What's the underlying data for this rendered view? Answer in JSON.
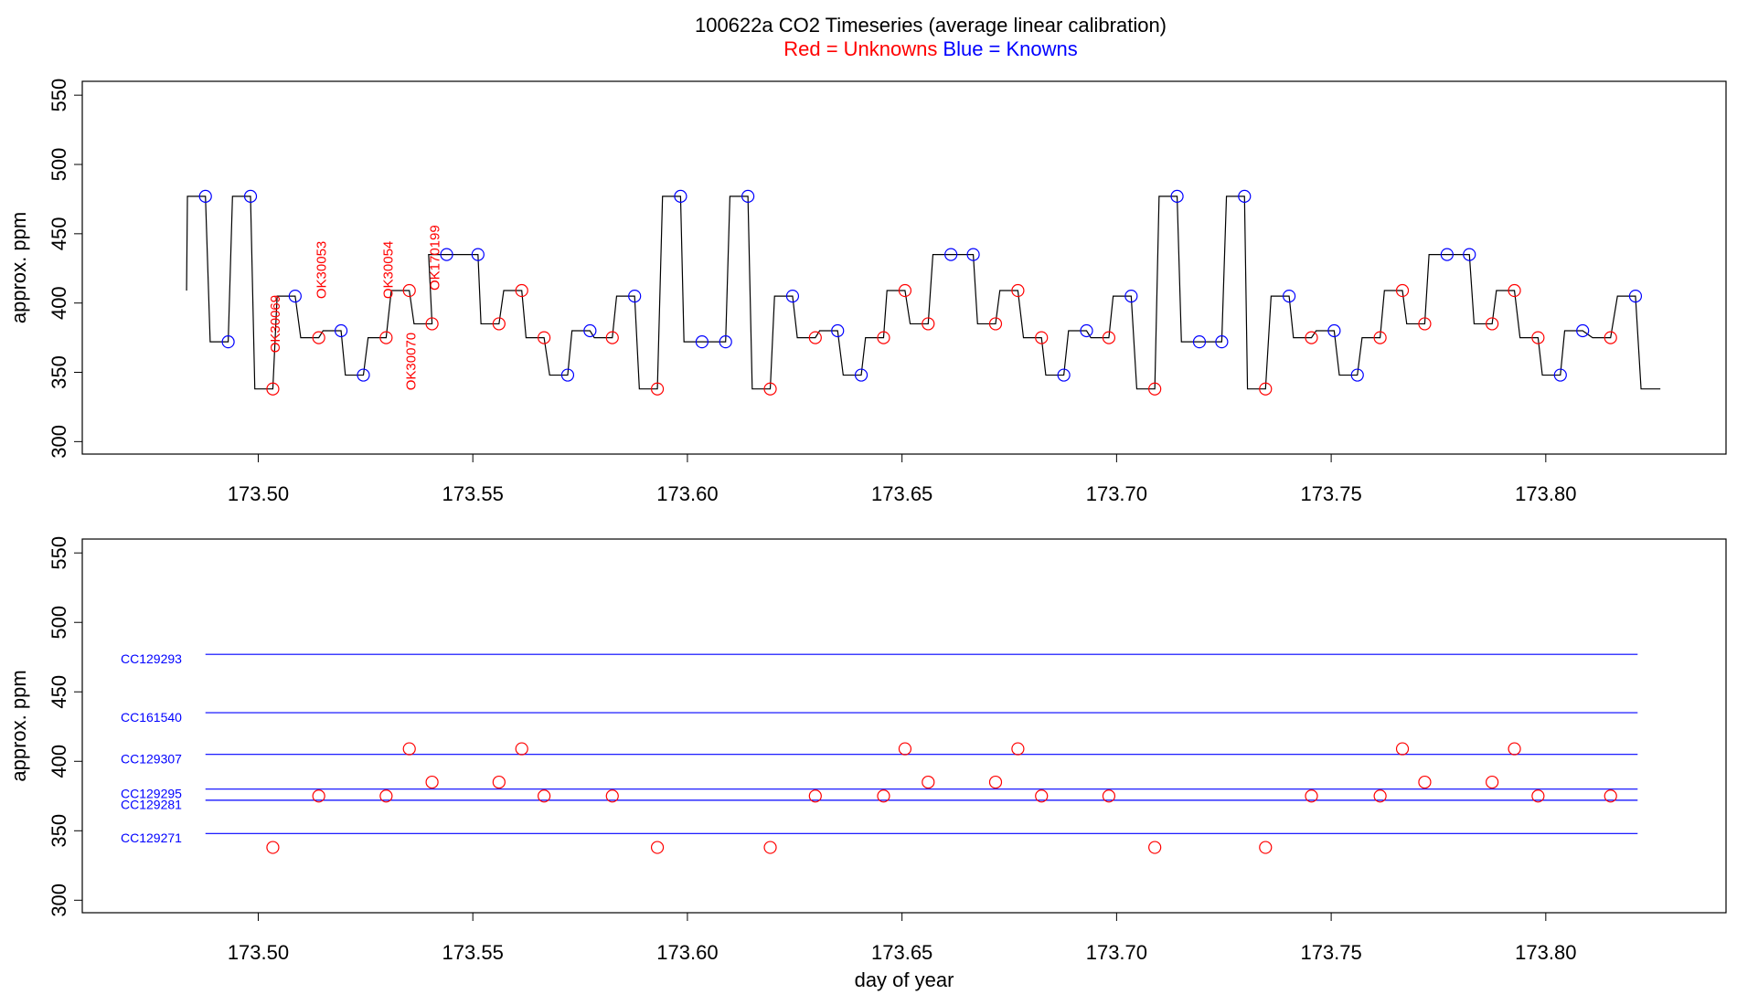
{
  "chart_data": [
    {
      "type": "line",
      "title": "100622a   CO2 Timeseries (average linear calibration)",
      "ylabel": "approx. ppm",
      "xlim": [
        173.459,
        173.842
      ],
      "ylim": [
        291,
        560
      ],
      "xticks": [
        {
          "value": 173.5,
          "label": "173.50"
        },
        {
          "value": 173.55,
          "label": "173.55"
        },
        {
          "value": 173.6,
          "label": "173.60"
        },
        {
          "value": 173.65,
          "label": "173.65"
        },
        {
          "value": 173.7,
          "label": "173.70"
        },
        {
          "value": 173.75,
          "label": "173.75"
        },
        {
          "value": 173.8,
          "label": "173.80"
        }
      ],
      "yticks": [
        300,
        350,
        400,
        450,
        500,
        550
      ],
      "trace": {
        "color": "#000000",
        "x": [
          173.4833,
          173.4835,
          173.4877,
          173.4888,
          173.493,
          173.494,
          173.4982,
          173.4992,
          173.5034,
          173.5044,
          173.5086,
          173.5099,
          173.5141,
          173.5151,
          173.5193,
          173.5203,
          173.5245,
          173.5256,
          173.5298,
          173.531,
          173.5352,
          173.5363,
          173.5405,
          173.5397,
          173.5439,
          173.547,
          173.5512,
          173.5519,
          173.5561,
          173.5572,
          173.5614,
          173.5624,
          173.5666,
          173.5679,
          173.5721,
          173.5731,
          173.5773,
          173.5783,
          173.5825,
          173.5835,
          173.5877,
          173.5888,
          173.593,
          173.5942,
          173.5984,
          173.5992,
          173.6034,
          173.6047,
          173.6089,
          173.6099,
          173.6141,
          173.6151,
          173.6193,
          173.6203,
          173.6245,
          173.6256,
          173.6298,
          173.6308,
          173.635,
          173.6363,
          173.6405,
          173.6415,
          173.6457,
          173.6465,
          173.6507,
          173.6519,
          173.6561,
          173.6572,
          173.6614,
          173.6624,
          173.6666,
          173.6676,
          173.6718,
          173.6728,
          173.677,
          173.6783,
          173.6825,
          173.6835,
          173.6877,
          173.6888,
          173.693,
          173.694,
          173.6982,
          173.6992,
          173.7034,
          173.7047,
          173.7089,
          173.7099,
          173.7141,
          173.7151,
          173.7193,
          173.7203,
          173.7245,
          173.7256,
          173.7298,
          173.7305,
          173.7347,
          173.736,
          173.7402,
          173.7412,
          173.7454,
          173.7465,
          173.7507,
          173.7519,
          173.7561,
          173.7572,
          173.7614,
          173.7624,
          173.7666,
          173.7676,
          173.7718,
          173.7728,
          173.777,
          173.778,
          173.7822,
          173.7833,
          173.7875,
          173.7885,
          173.7927,
          173.794,
          173.7982,
          173.7992,
          173.8034,
          173.8044,
          173.8086,
          173.8109,
          173.8151,
          173.8167,
          173.8209,
          173.8222,
          173.8267
        ],
        "y": [
          409,
          477,
          477,
          372,
          372,
          477,
          477,
          338,
          338,
          405,
          405,
          375,
          375,
          380,
          380,
          348,
          348,
          375,
          375,
          409,
          409,
          385,
          385,
          435,
          435,
          435,
          435,
          385,
          385,
          409,
          409,
          375,
          375,
          348,
          348,
          380,
          380,
          375,
          375,
          405,
          405,
          338,
          338,
          477,
          477,
          372,
          372,
          372,
          372,
          477,
          477,
          338,
          338,
          405,
          405,
          375,
          375,
          380,
          380,
          348,
          348,
          375,
          375,
          409,
          409,
          385,
          385,
          435,
          435,
          435,
          435,
          385,
          385,
          409,
          409,
          375,
          375,
          348,
          348,
          380,
          380,
          375,
          375,
          405,
          405,
          338,
          338,
          477,
          477,
          372,
          372,
          372,
          372,
          477,
          477,
          338,
          338,
          405,
          405,
          375,
          375,
          380,
          380,
          348,
          348,
          375,
          375,
          409,
          409,
          385,
          385,
          435,
          435,
          435,
          435,
          385,
          385,
          409,
          409,
          375,
          375,
          348,
          348,
          380,
          380,
          375,
          375,
          405,
          405,
          338,
          338
        ]
      },
      "series": [
        {
          "name": "Red = Unknowns",
          "color": "#ff0000",
          "x": [
            173.5034,
            173.5141,
            173.5298,
            173.5352,
            173.5405,
            173.5561,
            173.5614,
            173.5666,
            173.5825,
            173.593,
            173.6193,
            173.6298,
            173.6457,
            173.6507,
            173.6561,
            173.6718,
            173.677,
            173.6825,
            173.6982,
            173.7089,
            173.7347,
            173.7454,
            173.7614,
            173.7666,
            173.7718,
            173.7875,
            173.7927,
            173.7982,
            173.8151
          ],
          "values": [
            338,
            375,
            375,
            409,
            385,
            385,
            409,
            375,
            375,
            338,
            338,
            375,
            375,
            409,
            385,
            385,
            409,
            375,
            375,
            338,
            338,
            375,
            375,
            409,
            385,
            385,
            409,
            375,
            375
          ]
        },
        {
          "name": "Blue = Knowns",
          "color": "#0000ff",
          "x": [
            173.4877,
            173.493,
            173.4982,
            173.5086,
            173.5193,
            173.5245,
            173.5439,
            173.5512,
            173.5721,
            173.5773,
            173.5877,
            173.5984,
            173.6034,
            173.6089,
            173.6141,
            173.6245,
            173.635,
            173.6405,
            173.6614,
            173.6666,
            173.6877,
            173.693,
            173.7034,
            173.7141,
            173.7193,
            173.7245,
            173.7298,
            173.7402,
            173.7507,
            173.7561,
            173.777,
            173.7822,
            173.8034,
            173.8086,
            173.8209
          ],
          "values": [
            477,
            372,
            477,
            405,
            380,
            348,
            435,
            435,
            348,
            380,
            405,
            477,
            372,
            372,
            477,
            405,
            380,
            348,
            435,
            435,
            348,
            380,
            405,
            477,
            372,
            372,
            477,
            405,
            380,
            348,
            435,
            435,
            348,
            380,
            405
          ]
        }
      ],
      "annotations": [
        {
          "text": "OK30069",
          "x": 173.5042,
          "y": 364,
          "color": "#ff0000"
        },
        {
          "text": "OK30053",
          "x": 173.5149,
          "y": 403,
          "color": "#ff0000"
        },
        {
          "text": "OK30054",
          "x": 173.5305,
          "y": 403,
          "color": "#ff0000"
        },
        {
          "text": "OK30070",
          "x": 173.5358,
          "y": 337,
          "color": "#ff0000"
        },
        {
          "text": "OK170199",
          "x": 173.5413,
          "y": 409,
          "color": "#ff0000"
        }
      ]
    },
    {
      "type": "scatter",
      "ylabel": "approx. ppm",
      "xlabel": "day of year",
      "xlim": [
        173.459,
        173.842
      ],
      "ylim": [
        291,
        560
      ],
      "xticks": [
        {
          "value": 173.5,
          "label": "173.50"
        },
        {
          "value": 173.55,
          "label": "173.55"
        },
        {
          "value": 173.6,
          "label": "173.60"
        },
        {
          "value": 173.65,
          "label": "173.65"
        },
        {
          "value": 173.7,
          "label": "173.70"
        },
        {
          "value": 173.75,
          "label": "173.75"
        },
        {
          "value": 173.8,
          "label": "173.80"
        }
      ],
      "yticks": [
        300,
        350,
        400,
        450,
        500,
        550
      ],
      "series": [
        {
          "color": "#ff0000",
          "x": [
            173.5034,
            173.5141,
            173.5298,
            173.5352,
            173.5405,
            173.5561,
            173.5614,
            173.5666,
            173.5825,
            173.593,
            173.6193,
            173.6298,
            173.6457,
            173.6507,
            173.6561,
            173.6718,
            173.677,
            173.6825,
            173.6982,
            173.7089,
            173.7347,
            173.7454,
            173.7614,
            173.7666,
            173.7718,
            173.7875,
            173.7927,
            173.7982,
            173.8151
          ],
          "values": [
            338,
            375,
            375,
            409,
            385,
            385,
            409,
            375,
            375,
            338,
            338,
            375,
            375,
            409,
            385,
            385,
            409,
            375,
            375,
            338,
            338,
            375,
            375,
            409,
            385,
            385,
            409,
            375,
            375
          ]
        }
      ],
      "reference_color": "#0000ff",
      "reference_lines": [
        {
          "label": "CC129293",
          "value": 477,
          "xrange": [
            173.4877,
            173.8214
          ]
        },
        {
          "label": "CC161540",
          "value": 435,
          "xrange": [
            173.4877,
            173.8214
          ]
        },
        {
          "label": "CC129307",
          "value": 405,
          "xrange": [
            173.4877,
            173.8214
          ]
        },
        {
          "label": "CC129295",
          "value": 380,
          "xrange": [
            173.4877,
            173.8214
          ]
        },
        {
          "label": "CC129281",
          "value": 372,
          "xrange": [
            173.4877,
            173.8214
          ]
        },
        {
          "label": "CC129271",
          "value": 348,
          "xrange": [
            173.4877,
            173.8214
          ]
        }
      ]
    }
  ]
}
